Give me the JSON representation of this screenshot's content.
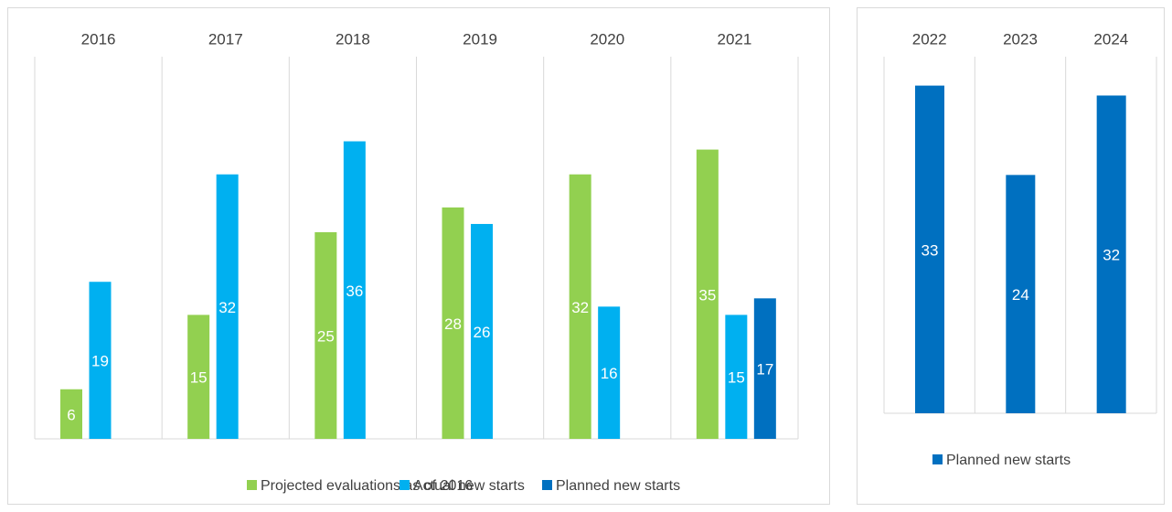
{
  "chart_data": [
    {
      "type": "bar",
      "categories": [
        "2016",
        "2017",
        "2018",
        "2019",
        "2020",
        "2021"
      ],
      "series": [
        {
          "name": "Projected evaluations as of 2016",
          "color": "#92d050",
          "values": [
            6,
            15,
            25,
            28,
            32,
            35
          ]
        },
        {
          "name": "Actual new starts",
          "color": "#00b0f0",
          "values": [
            19,
            32,
            36,
            26,
            16,
            15
          ]
        },
        {
          "name": "Planned new starts",
          "color": "#0070c0",
          "values": [
            null,
            null,
            null,
            null,
            null,
            17
          ]
        }
      ],
      "legend": "bottom"
    },
    {
      "type": "bar",
      "categories": [
        "2022",
        "2023",
        "2024"
      ],
      "series": [
        {
          "name": "Planned new starts",
          "color": "#0070c0",
          "values": [
            33,
            24,
            32
          ]
        }
      ],
      "legend": "bottom"
    }
  ]
}
